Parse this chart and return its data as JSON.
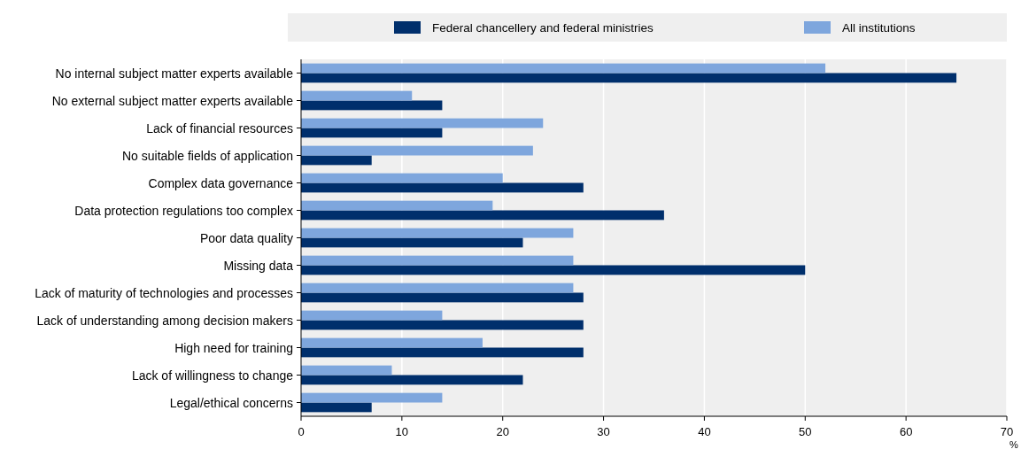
{
  "chart_data": {
    "type": "bar",
    "orientation": "horizontal",
    "categories": [
      "No internal subject matter experts available",
      "No external subject matter experts available",
      "Lack of financial resources",
      "No suitable fields of application",
      "Complex data governance",
      "Data protection regulations too complex",
      "Poor data quality",
      "Missing data",
      "Lack of maturity of technologies and processes",
      "Lack of understanding among decision makers",
      "High need for training",
      "Lack of willingness to change",
      "Legal/ethical concerns"
    ],
    "series": [
      {
        "name": "Federal chancellery and federal ministries",
        "color": "#002f6c",
        "values": [
          65,
          14,
          14,
          7,
          28,
          36,
          22,
          50,
          28,
          28,
          28,
          22,
          7
        ]
      },
      {
        "name": "All institutions",
        "color": "#7ea6dd",
        "values": [
          52,
          11,
          24,
          23,
          20,
          19,
          27,
          27,
          27,
          14,
          18,
          9,
          14
        ]
      }
    ],
    "xlim": [
      0,
      70
    ],
    "xticks": [
      0,
      10,
      20,
      30,
      40,
      50,
      60,
      70
    ],
    "xlabel": "%",
    "grid": "x",
    "legend": "top"
  }
}
